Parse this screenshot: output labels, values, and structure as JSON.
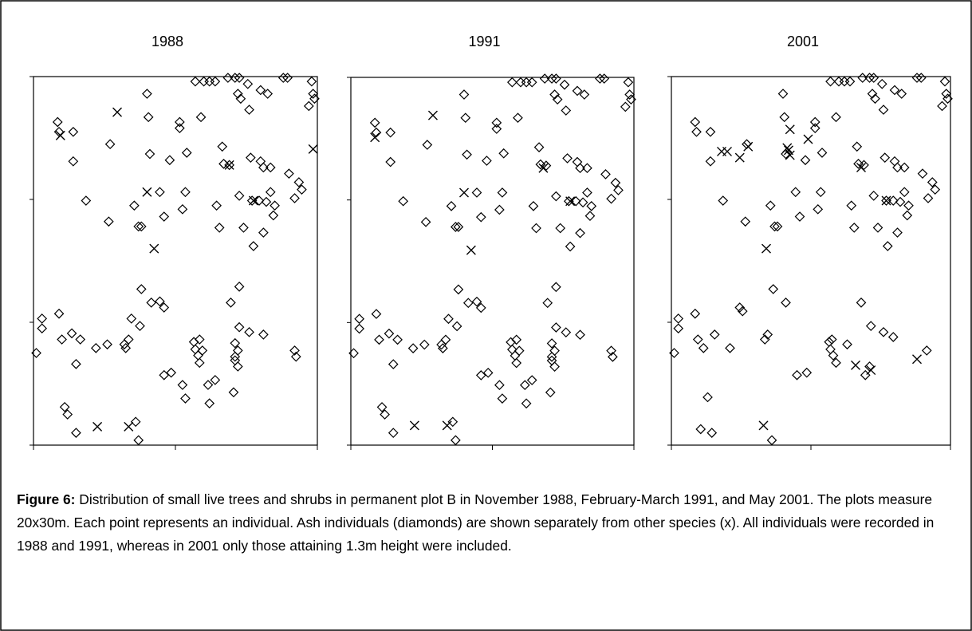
{
  "chart_data": [
    {
      "type": "scatter",
      "title": "1988",
      "xlim": [
        0,
        20
      ],
      "ylim": [
        0,
        30
      ],
      "xticks": [
        0,
        10,
        20
      ],
      "yticks": [
        0,
        10,
        20,
        30
      ],
      "series": [
        {
          "marker": "diamond",
          "color": "#000000",
          "x": [
            1.7,
            1.8,
            2.8,
            2.8,
            3.7,
            5.3,
            5.4,
            8.0,
            8.1,
            8.2,
            8.9,
            9.2,
            9.6,
            7.1,
            7.4,
            7.6,
            10.3,
            10.3,
            10.7,
            10.8,
            10.5,
            11.8,
            11.4,
            12.0,
            12.4,
            12.8,
            13.7,
            14.2,
            14.5,
            14.4,
            14.6,
            15.1,
            15.2,
            16.0,
            16.5,
            17.6,
            17.9,
            19.6,
            19.7,
            19.8,
            19.4,
            13.3,
            13.4,
            12.9,
            13.1,
            13.8,
            14.8,
            14.5,
            15.3,
            16.0,
            16.2,
            16.7,
            15.5,
            16.2,
            16.7,
            17.0,
            16.9,
            18.0,
            18.7,
            18.9,
            18.4,
            15.4,
            15.9,
            16.4,
            0.2,
            0.6,
            0.6,
            1.8,
            2.0,
            2.7,
            3.3,
            3.0,
            4.4,
            5.2,
            6.4,
            6.5,
            6.7,
            6.9,
            7.5,
            7.6,
            8.3,
            8.9,
            9.2,
            9.2,
            9.7,
            10.5,
            10.7,
            11.3,
            11.4,
            11.6,
            11.7,
            11.9,
            11.7,
            12.3,
            12.8,
            12.4,
            14.2,
            14.4,
            14.2,
            14.2,
            14.4,
            14.5,
            14.5,
            13.9,
            15.2,
            16.2,
            18.4,
            18.5,
            2.2,
            2.4,
            3.0,
            7.2,
            7.4,
            14.1
          ],
          "values": [
            26.3,
            25.5,
            25.5,
            23.1,
            19.9,
            18.2,
            24.5,
            28.6,
            26.7,
            23.7,
            20.6,
            18.6,
            23.2,
            19.5,
            17.8,
            17.8,
            26.3,
            25.8,
            20.6,
            23.8,
            19.2,
            26.7,
            29.6,
            29.6,
            29.6,
            29.6,
            29.9,
            29.9,
            29.9,
            28.6,
            28.2,
            29.4,
            27.3,
            28.9,
            28.6,
            29.9,
            29.9,
            29.6,
            28.6,
            28.2,
            27.6,
            24.3,
            22.9,
            19.5,
            17.7,
            22.8,
            17.7,
            20.3,
            23.4,
            23.1,
            22.6,
            22.6,
            16.2,
            17.3,
            20.6,
            19.5,
            18.7,
            22.1,
            21.4,
            20.8,
            20.1,
            19.9,
            19.9,
            19.8,
            7.5,
            10.3,
            9.5,
            10.7,
            8.6,
            9.1,
            8.6,
            6.6,
            7.9,
            8.2,
            8.2,
            7.9,
            8.6,
            10.3,
            9.7,
            12.7,
            11.6,
            11.7,
            11.2,
            5.7,
            5.9,
            4.9,
            3.8,
            8.4,
            7.8,
            7.3,
            6.7,
            7.7,
            8.6,
            4.9,
            5.3,
            3.4,
            7.2,
            7.7,
            8.3,
            6.9,
            6.4,
            9.6,
            12.9,
            11.6,
            9.2,
            9.0,
            7.7,
            7.2,
            3.1,
            2.5,
            1.0,
            1.9,
            0.4,
            4.3
          ]
        },
        {
          "marker": "x",
          "color": "#000000",
          "x": [
            5.9,
            1.9,
            19.7,
            8.0,
            13.8,
            15.5,
            8.5,
            4.5,
            6.7
          ],
          "values": [
            27.1,
            25.2,
            24.1,
            20.6,
            22.8,
            19.9,
            16.0,
            1.5,
            1.5
          ]
        }
      ]
    },
    {
      "type": "scatter",
      "title": "1991",
      "xlim": [
        0,
        20
      ],
      "ylim": [
        0,
        30
      ],
      "xticks": [
        0,
        10,
        20
      ],
      "yticks": [
        0,
        10,
        20,
        30
      ],
      "series": [
        {
          "marker": "diamond",
          "color": "#000000",
          "x": [
            1.7,
            1.8,
            2.8,
            2.8,
            3.7,
            5.3,
            5.4,
            8.0,
            8.1,
            8.2,
            8.9,
            9.2,
            9.6,
            7.1,
            7.4,
            7.6,
            10.3,
            10.3,
            10.7,
            10.8,
            10.5,
            11.8,
            11.4,
            12.0,
            12.4,
            12.8,
            13.7,
            14.2,
            14.5,
            14.4,
            14.6,
            15.1,
            15.2,
            16.0,
            16.5,
            17.6,
            17.9,
            19.6,
            19.7,
            19.8,
            19.4,
            13.3,
            13.4,
            12.9,
            13.1,
            13.8,
            14.8,
            14.5,
            15.3,
            16.0,
            16.2,
            16.7,
            15.5,
            16.2,
            16.7,
            17.0,
            16.9,
            18.0,
            18.7,
            18.9,
            18.4,
            15.4,
            15.9,
            16.4,
            0.2,
            0.6,
            0.6,
            1.8,
            2.0,
            2.7,
            3.3,
            3.0,
            4.4,
            5.2,
            6.4,
            6.5,
            6.7,
            6.9,
            7.5,
            7.6,
            8.3,
            8.9,
            9.2,
            9.2,
            9.7,
            10.5,
            10.7,
            11.3,
            11.4,
            11.6,
            11.7,
            11.9,
            11.7,
            12.3,
            12.8,
            12.4,
            14.2,
            14.4,
            14.2,
            14.2,
            14.4,
            14.5,
            14.5,
            13.9,
            15.2,
            16.2,
            18.4,
            18.5,
            2.2,
            2.4,
            3.0,
            7.2,
            7.4,
            14.1
          ],
          "values": [
            26.3,
            25.5,
            25.5,
            23.1,
            19.9,
            18.2,
            24.5,
            28.6,
            26.7,
            23.7,
            20.6,
            18.6,
            23.2,
            19.5,
            17.8,
            17.8,
            26.3,
            25.8,
            20.6,
            23.8,
            19.2,
            26.7,
            29.6,
            29.6,
            29.6,
            29.6,
            29.9,
            29.9,
            29.9,
            28.6,
            28.2,
            29.4,
            27.3,
            28.9,
            28.6,
            29.9,
            29.9,
            29.6,
            28.6,
            28.2,
            27.6,
            24.3,
            22.9,
            19.5,
            17.7,
            22.8,
            17.7,
            20.3,
            23.4,
            23.1,
            22.6,
            22.6,
            16.2,
            17.3,
            20.6,
            19.5,
            18.7,
            22.1,
            21.4,
            20.8,
            20.1,
            19.9,
            19.9,
            19.8,
            7.5,
            10.3,
            9.5,
            10.7,
            8.6,
            9.1,
            8.6,
            6.6,
            7.9,
            8.2,
            8.2,
            7.9,
            8.6,
            10.3,
            9.7,
            12.7,
            11.6,
            11.7,
            11.2,
            5.7,
            5.9,
            4.9,
            3.8,
            8.4,
            7.8,
            7.3,
            6.7,
            7.7,
            8.6,
            4.9,
            5.3,
            3.4,
            7.2,
            7.7,
            8.3,
            6.9,
            6.4,
            9.6,
            12.9,
            11.6,
            9.2,
            9.0,
            7.7,
            7.2,
            3.1,
            2.5,
            1.0,
            1.9,
            0.4,
            4.3
          ]
        },
        {
          "marker": "x",
          "color": "#000000",
          "x": [
            5.8,
            1.7,
            8.0,
            13.6,
            15.5,
            8.5,
            4.5,
            6.8
          ],
          "values": [
            26.9,
            25.1,
            20.6,
            22.6,
            19.9,
            15.9,
            1.6,
            1.6
          ]
        }
      ]
    },
    {
      "type": "scatter",
      "title": "2001",
      "xlim": [
        0,
        20
      ],
      "ylim": [
        0,
        30
      ],
      "xticks": [
        0,
        10,
        20
      ],
      "yticks": [
        0,
        10,
        20,
        30
      ],
      "series": [
        {
          "marker": "diamond",
          "color": "#000000",
          "x": [
            1.7,
            1.8,
            2.8,
            2.8,
            3.7,
            5.3,
            5.4,
            8.0,
            8.1,
            8.2,
            8.9,
            9.2,
            9.6,
            7.1,
            7.4,
            7.6,
            10.3,
            10.3,
            10.7,
            10.8,
            10.5,
            11.8,
            11.4,
            12.0,
            12.4,
            12.8,
            13.7,
            14.2,
            14.5,
            14.4,
            14.6,
            15.1,
            15.2,
            16.0,
            16.5,
            17.6,
            17.9,
            19.6,
            19.7,
            19.8,
            19.4,
            13.3,
            13.4,
            12.9,
            13.1,
            13.8,
            14.8,
            14.5,
            15.3,
            16.0,
            16.2,
            16.7,
            15.5,
            16.2,
            16.7,
            17.0,
            16.9,
            18.0,
            18.7,
            18.9,
            18.4,
            15.4,
            15.9,
            16.4,
            0.2,
            0.5,
            0.5,
            1.7,
            1.9,
            2.3,
            3.1,
            4.2,
            4.9,
            5.1,
            6.7,
            6.9,
            7.3,
            8.2,
            9.0,
            9.7,
            11.3,
            11.4,
            11.6,
            11.8,
            11.5,
            12.6,
            13.9,
            14.2,
            13.6,
            14.3,
            15.2,
            15.9,
            18.3,
            2.6,
            2.1,
            2.9,
            7.2
          ],
          "values": [
            26.3,
            25.5,
            25.5,
            23.1,
            19.9,
            18.2,
            24.5,
            28.6,
            26.7,
            23.7,
            20.6,
            18.6,
            23.2,
            19.5,
            17.8,
            17.8,
            26.3,
            25.8,
            20.6,
            23.8,
            19.2,
            26.7,
            29.6,
            29.6,
            29.6,
            29.6,
            29.9,
            29.9,
            29.9,
            28.6,
            28.2,
            29.4,
            27.3,
            28.9,
            28.6,
            29.9,
            29.9,
            29.6,
            28.6,
            28.2,
            27.6,
            24.3,
            22.9,
            19.5,
            17.7,
            22.8,
            17.7,
            20.3,
            23.4,
            23.1,
            22.6,
            22.6,
            16.2,
            17.3,
            20.6,
            19.5,
            18.7,
            22.1,
            21.4,
            20.8,
            20.1,
            19.9,
            19.9,
            19.8,
            7.5,
            10.3,
            9.5,
            10.7,
            8.6,
            7.9,
            9.0,
            7.9,
            11.2,
            10.9,
            8.6,
            9.0,
            12.7,
            11.6,
            5.7,
            5.9,
            8.4,
            7.8,
            7.3,
            6.7,
            8.6,
            8.2,
            5.7,
            6.4,
            11.6,
            9.7,
            9.2,
            8.8,
            7.7,
            3.9,
            1.3,
            1.0,
            0.4
          ]
        },
        {
          "marker": "x",
          "color": "#000000",
          "x": [
            3.6,
            4.0,
            4.9,
            5.5,
            8.5,
            8.3,
            8.5,
            8.4,
            9.8,
            13.6,
            15.4,
            6.8,
            13.2,
            14.3,
            17.6,
            6.6
          ],
          "values": [
            23.9,
            23.9,
            23.4,
            24.3,
            25.7,
            24.2,
            23.6,
            24.0,
            24.9,
            22.6,
            19.9,
            16.0,
            6.5,
            6.1,
            7.0,
            1.6
          ]
        }
      ]
    }
  ],
  "caption": {
    "label": "Figure 6:",
    "text": "Distribution of small live trees and shrubs in permanent plot B in November 1988, February-March 1991, and May 2001. The plots measure 20x30m. Each point represents an individual. Ash individuals (diamonds) are shown separately from other species (x). All individuals were recorded in 1988 and 1991, whereas in 2001 only those attaining 1.3m height were included."
  }
}
